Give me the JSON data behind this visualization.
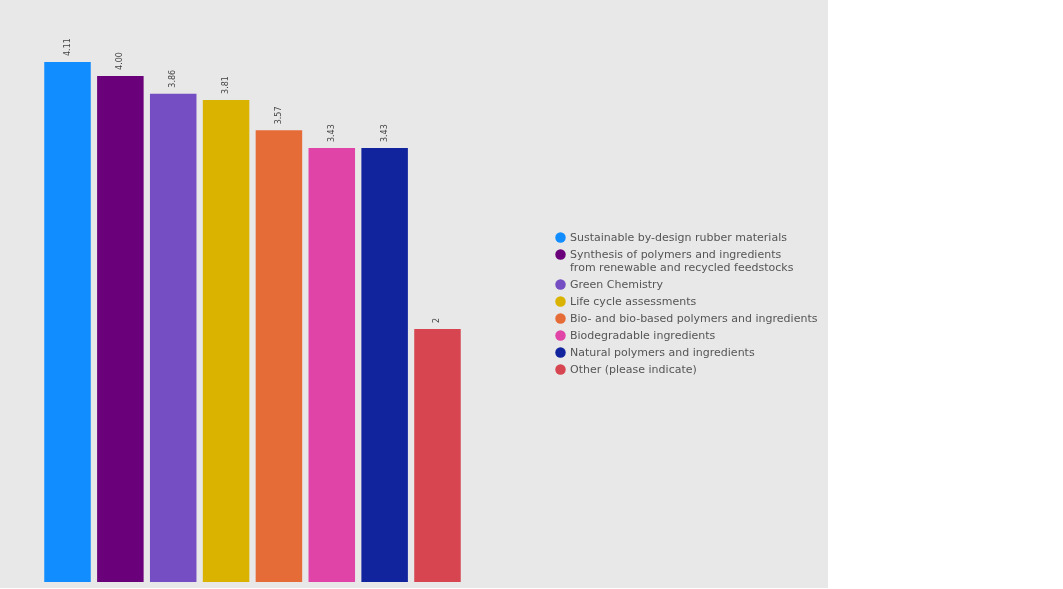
{
  "chart_data": {
    "type": "bar",
    "categories": [
      null
    ],
    "series": [
      {
        "name": "Sustainable by-design rubber materials",
        "color": "#118dff",
        "values": [
          4.11
        ],
        "value_labels": [
          "4.11"
        ]
      },
      {
        "name": "Synthesis of polymers and ingredients\nfrom renewable and recycled feedstocks",
        "color": "#6b007b",
        "values": [
          4.0
        ],
        "value_labels": [
          "4.00"
        ]
      },
      {
        "name": "Green Chemistry",
        "color": "#744ec2",
        "values": [
          3.86
        ],
        "value_labels": [
          "3.86"
        ]
      },
      {
        "name": "Life cycle assessments",
        "color": "#d9b300",
        "values": [
          3.81
        ],
        "value_labels": [
          "3.81"
        ]
      },
      {
        "name": "Bio- and bio-based polymers and ingredients",
        "color": "#e66c37",
        "values": [
          3.57
        ],
        "value_labels": [
          "3.57"
        ]
      },
      {
        "name": "Biodegradable ingredients",
        "color": "#e044a7",
        "values": [
          3.43
        ],
        "value_labels": [
          "3.43"
        ]
      },
      {
        "name": "Natural polymers and ingredients",
        "color": "#12239e",
        "values": [
          3.43
        ],
        "value_labels": [
          "3.43"
        ]
      },
      {
        "name": "Other (please indicate)",
        "color": "#d64550",
        "values": [
          2
        ],
        "value_labels": [
          "2"
        ]
      }
    ],
    "legend": "right",
    "grid": false
  }
}
